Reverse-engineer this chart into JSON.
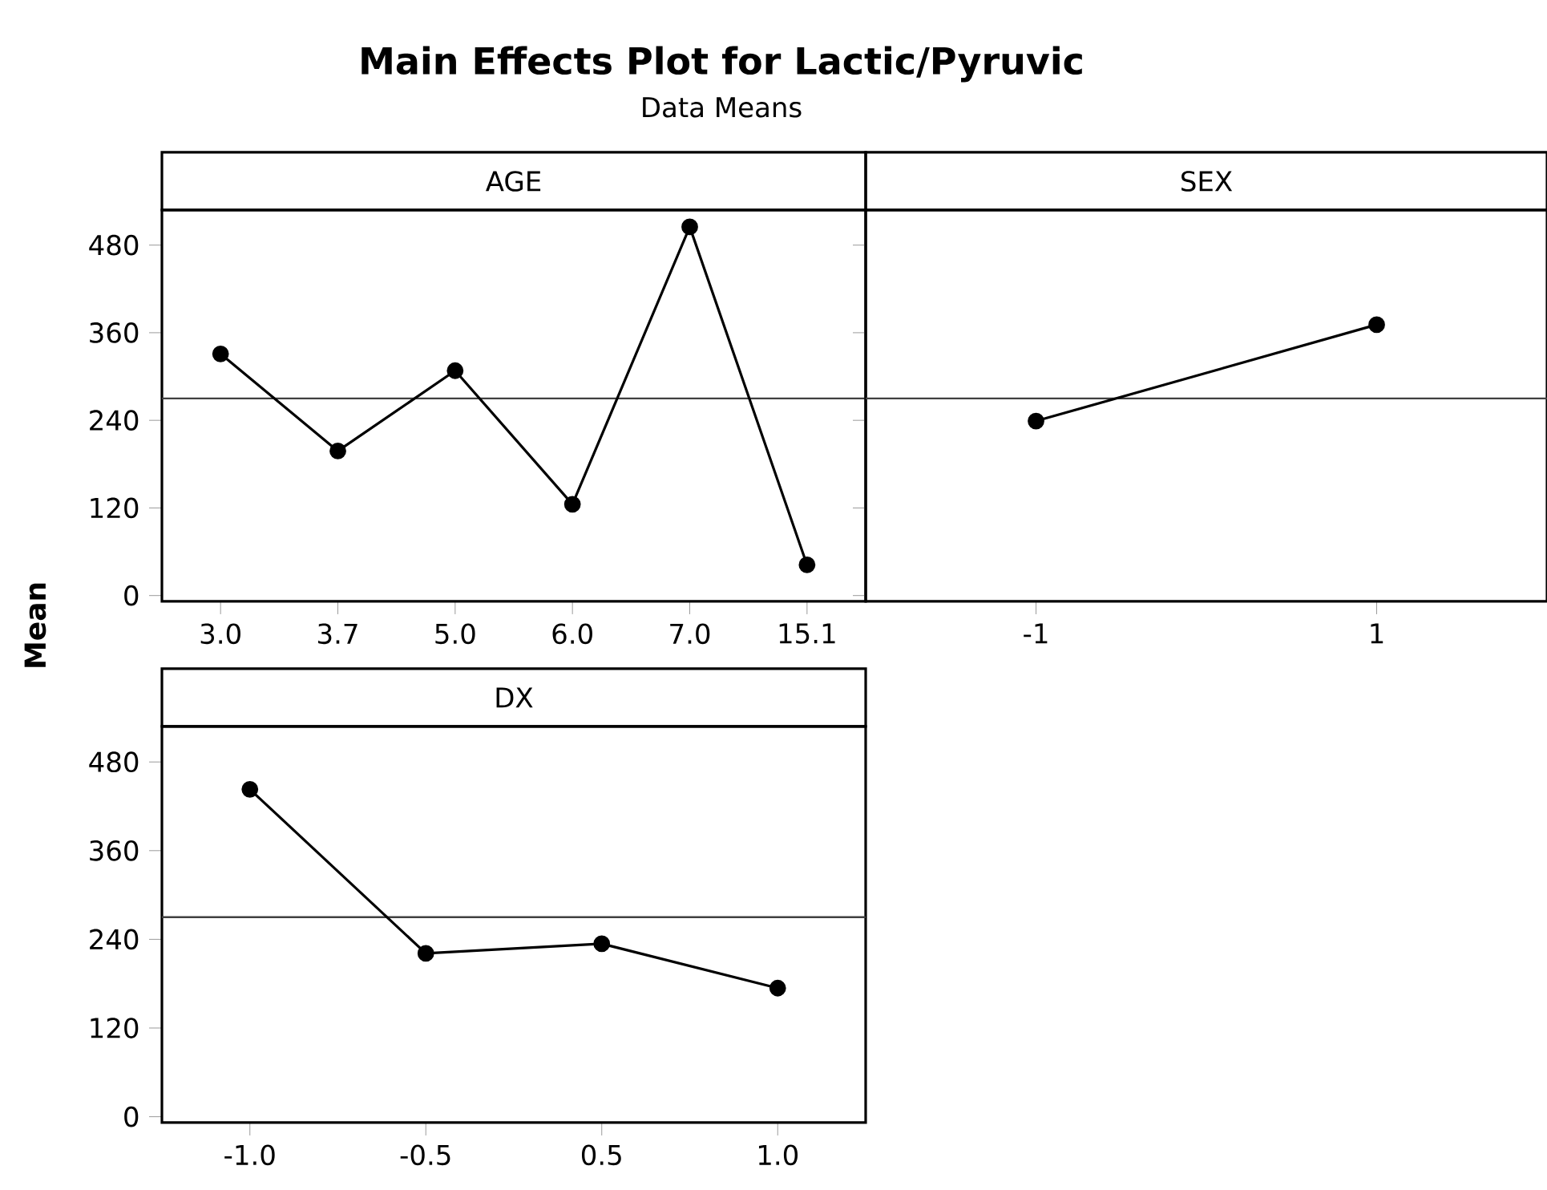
{
  "chart_data": [
    {
      "type": "line",
      "title": "AGE",
      "annotations": [
        "Main Effects Plot for Lactic/Pyruvic",
        "Data Means"
      ],
      "ylabel": "Mean",
      "categories": [
        "3.0",
        "3.7",
        "5.0",
        "6.0",
        "7.0",
        "15.1"
      ],
      "series": [
        {
          "color": "#000000",
          "values": [
            331,
            198,
            308,
            125,
            505,
            42
          ]
        }
      ],
      "ylim": [
        -8,
        528
      ],
      "yticks": [
        0,
        120,
        240,
        360,
        480
      ],
      "ref_lines": [
        {
          "axis": "y",
          "value": 270
        }
      ],
      "marker": "circle",
      "line_style": "solid"
    },
    {
      "type": "line",
      "title": "SEX",
      "categories": [
        "-1",
        "1"
      ],
      "series": [
        {
          "color": "#000000",
          "values": [
            239,
            371
          ]
        }
      ],
      "ylim": [
        -8,
        528
      ],
      "yticks": [
        0,
        120,
        240,
        360,
        480
      ],
      "tick_labels": "x",
      "ref_lines": [
        {
          "axis": "y",
          "value": 270
        }
      ],
      "marker": "circle",
      "line_style": "solid"
    },
    {
      "type": "line",
      "title": "DX",
      "categories": [
        "-1.0",
        "-0.5",
        "0.5",
        "1.0"
      ],
      "series": [
        {
          "color": "#000000",
          "values": [
            443,
            221,
            234,
            174
          ]
        }
      ],
      "ylim": [
        -8,
        528
      ],
      "yticks": [
        0,
        120,
        240,
        360,
        480
      ],
      "ref_lines": [
        {
          "axis": "y",
          "value": 270
        }
      ],
      "marker": "circle",
      "line_style": "solid"
    }
  ]
}
